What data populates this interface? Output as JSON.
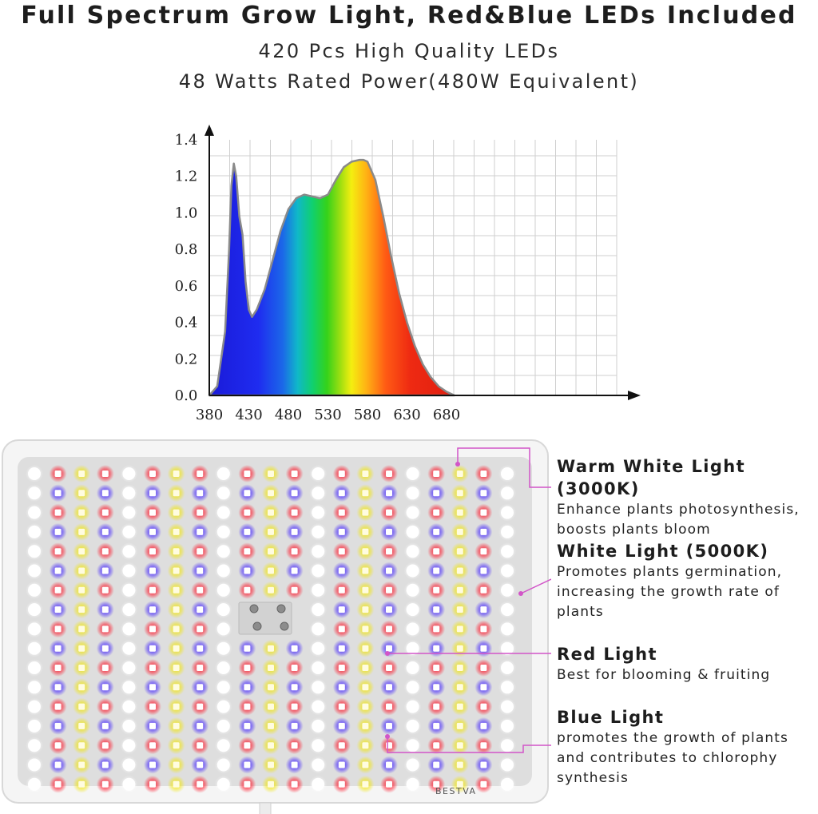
{
  "header": {
    "title": "Full Spectrum Grow Light, Red&Blue LEDs Included",
    "line1": "420 Pcs High Quality LEDs",
    "line2": "48 Watts Rated Power(480W Equivalent)"
  },
  "chart_data": {
    "type": "area",
    "title": "",
    "xlabel": "",
    "ylabel": "",
    "xlim": [
      370,
      700
    ],
    "ylim": [
      0,
      1.4
    ],
    "xticks": [
      "380",
      "430",
      "480",
      "530",
      "580",
      "630",
      "680"
    ],
    "yticks": [
      "0.0",
      "0.2",
      "0.4",
      "0.6",
      "0.8",
      "1.0",
      "1.2",
      "1.4"
    ],
    "grid": true,
    "series": [
      {
        "x": [
          380,
          390,
          400,
          405,
          408,
          411,
          414,
          418,
          422,
          426,
          430,
          434,
          440,
          450,
          460,
          470,
          480,
          490,
          500,
          510,
          520,
          530,
          540,
          550,
          560,
          570,
          575,
          580,
          590,
          600,
          610,
          620,
          630,
          640,
          650,
          660,
          670,
          680,
          690
        ],
        "y": [
          0.0,
          0.05,
          0.35,
          0.8,
          1.15,
          1.27,
          1.2,
          0.98,
          0.88,
          0.62,
          0.47,
          0.43,
          0.47,
          0.58,
          0.74,
          0.9,
          1.02,
          1.08,
          1.1,
          1.09,
          1.08,
          1.1,
          1.18,
          1.25,
          1.28,
          1.29,
          1.29,
          1.28,
          1.18,
          0.98,
          0.76,
          0.56,
          0.4,
          0.27,
          0.17,
          0.1,
          0.05,
          0.02,
          0.0
        ]
      }
    ]
  },
  "panel": {
    "brand": "BESTVA"
  },
  "legend": [
    {
      "title": "Warm White Light (3000K)",
      "desc": [
        "Enhance plants photosynthesis,",
        "boosts plants bloom"
      ],
      "color": "#e8e015"
    },
    {
      "title": "White Light (5000K)",
      "desc": [
        "Promotes plants germination,",
        "increasing the growth rate of",
        "plants"
      ],
      "color": "#ffffff"
    },
    {
      "title": "Red Light",
      "desc": [
        "Best for blooming & fruiting"
      ],
      "color": "#ff1020"
    },
    {
      "title": "Blue Light",
      "desc": [
        "promotes the growth of plants",
        "and contributes to chlorophy",
        "synthesis"
      ],
      "color": "#3020ff"
    }
  ],
  "colors": {
    "leader_line": "#d255c8"
  }
}
